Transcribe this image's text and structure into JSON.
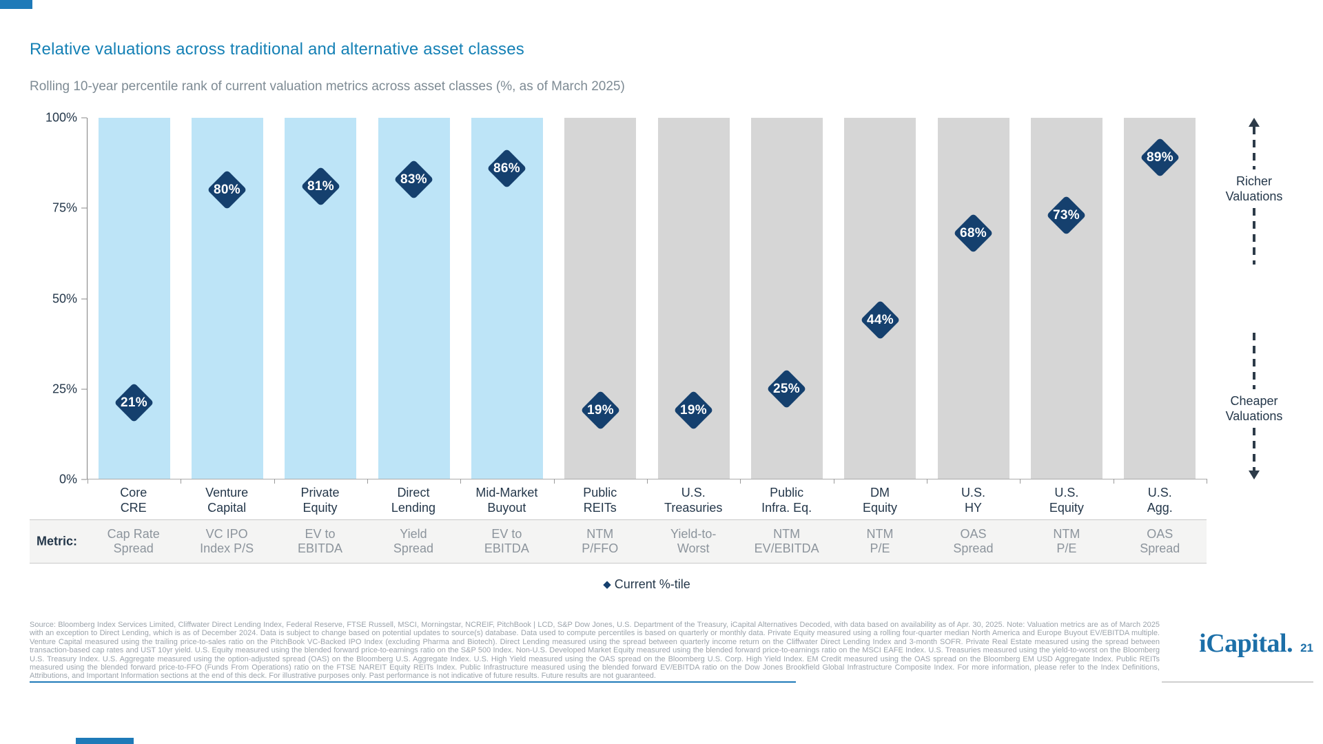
{
  "colors": {
    "title": "#1480B5",
    "accent_bar": "#1E7AB8",
    "bar_highlight": "#BDE4F7",
    "bar_muted": "#D6D6D6",
    "marker": "#15406E",
    "text_dark": "#24374A",
    "text_muted": "#8C949C",
    "logo_blue": "#1C6FA8"
  },
  "header": {
    "title": "Relative valuations across traditional and alternative asset classes",
    "subtitle": "Rolling 10-year percentile rank of current valuation metrics across asset classes (%, as of March 2025)"
  },
  "chart_data": {
    "type": "scatter",
    "title": "Relative valuations across traditional and alternative asset classes",
    "subtitle": "Rolling 10-year percentile rank of current valuation metrics across asset classes (%, as of March 2025)",
    "categories": [
      "Core CRE",
      "Venture Capital",
      "Private Equity",
      "Direct Lending",
      "Mid-Market Buyout",
      "Public REITs",
      "U.S. Treasuries",
      "Public Infra. Eq.",
      "DM Equity",
      "U.S. HY",
      "U.S. Equity",
      "U.S. Agg."
    ],
    "category_lines": [
      [
        "Core",
        "CRE"
      ],
      [
        "Venture",
        "Capital"
      ],
      [
        "Private",
        "Equity"
      ],
      [
        "Direct",
        "Lending"
      ],
      [
        "Mid-Market",
        "Buyout"
      ],
      [
        "Public",
        "REITs"
      ],
      [
        "U.S.",
        "Treasuries"
      ],
      [
        "Public",
        "Infra. Eq."
      ],
      [
        "DM",
        "Equity"
      ],
      [
        "U.S.",
        "HY"
      ],
      [
        "U.S.",
        "Equity"
      ],
      [
        "U.S.",
        "Agg."
      ]
    ],
    "metric_lines": [
      [
        "Cap Rate",
        "Spread"
      ],
      [
        "VC IPO",
        "Index P/S"
      ],
      [
        "EV to",
        "EBITDA"
      ],
      [
        "Yield",
        "Spread"
      ],
      [
        "EV to",
        "EBITDA"
      ],
      [
        "NTM",
        "P/FFO"
      ],
      [
        "Yield-to-",
        "Worst"
      ],
      [
        "NTM",
        "EV/EBITDA"
      ],
      [
        "NTM",
        "P/E"
      ],
      [
        "OAS",
        "Spread"
      ],
      [
        "NTM",
        "P/E"
      ],
      [
        "OAS",
        "Spread"
      ]
    ],
    "series": [
      {
        "name": "Current %-tile",
        "values": [
          21,
          80,
          81,
          83,
          86,
          19,
          19,
          25,
          44,
          68,
          73,
          89
        ]
      }
    ],
    "values": [
      21,
      80,
      81,
      83,
      86,
      19,
      19,
      25,
      44,
      68,
      73,
      89
    ],
    "highlight_first_n": 5,
    "background_bar_height": 100,
    "ylim": [
      0,
      100
    ],
    "yticks": [
      "0%",
      "25%",
      "50%",
      "75%",
      "100%"
    ],
    "grid": false,
    "legend": {
      "label": "Current %-tile",
      "position": "bottom-center",
      "marker": "diamond"
    }
  },
  "metric_row": {
    "caption": "Metric:"
  },
  "annotation": {
    "top": "Richer Valuations",
    "bottom": "Cheaper Valuations"
  },
  "footer": {
    "source": "Source: Bloomberg Index Services Limited, Cliffwater Direct Lending Index, Federal Reserve, FTSE Russell, MSCI, Morningstar, NCREIF, PitchBook | LCD, S&P Dow Jones, U.S. Department of the Treasury, iCapital Alternatives Decoded, with data based on availability as of Apr. 30, 2025. Note: Valuation metrics are as of March 2025 with an exception to Direct Lending, which is as of December 2024. Data is subject to change based on potential updates to source(s) database. Data used to compute percentiles is based on quarterly or monthly data. Private Equity measured using a rolling four-quarter median North America and Europe Buyout EV/EBITDA multiple. Venture Capital measured using the trailing price-to-sales ratio on the PitchBook VC-Backed IPO Index (excluding Pharma and Biotech). Direct Lending measured using the spread between quarterly income return on the Cliffwater Direct Lending Index and 3-month SOFR. Private Real Estate measured using the spread between transaction-based cap rates and UST 10yr yield. U.S. Equity measured using the blended forward price-to-earnings ratio on the S&P 500 Index. Non-U.S. Developed Market Equity measured using the blended forward price-to-earnings ratio on the MSCI EAFE Index. U.S. Treasuries measured using the yield-to-worst on the Bloomberg U.S. Treasury Index. U.S. Aggregate measured using the option-adjusted spread (OAS) on the Bloomberg U.S. Aggregate Index. U.S. High Yield measured using the OAS spread on the Bloomberg U.S. Corp. High Yield Index. EM Credit measured using the OAS spread on the Bloomberg EM USD Aggregate Index. Public REITs measured using the blended forward price-to-FFO (Funds From Operations) ratio on the FTSE NAREIT Equity REITs Index. Public Infrastructure measured using the blended forward EV/EBITDA ratio on the Dow Jones Brookfield Global Infrastructure Composite Index. For more information, please refer to the Index Definitions, Attributions, and Important Information sections at the end of this deck. For illustrative purposes only. Past performance is not indicative of future results. Future results are not guaranteed.",
    "logo_text": "iCapital.",
    "page_number": "21"
  }
}
